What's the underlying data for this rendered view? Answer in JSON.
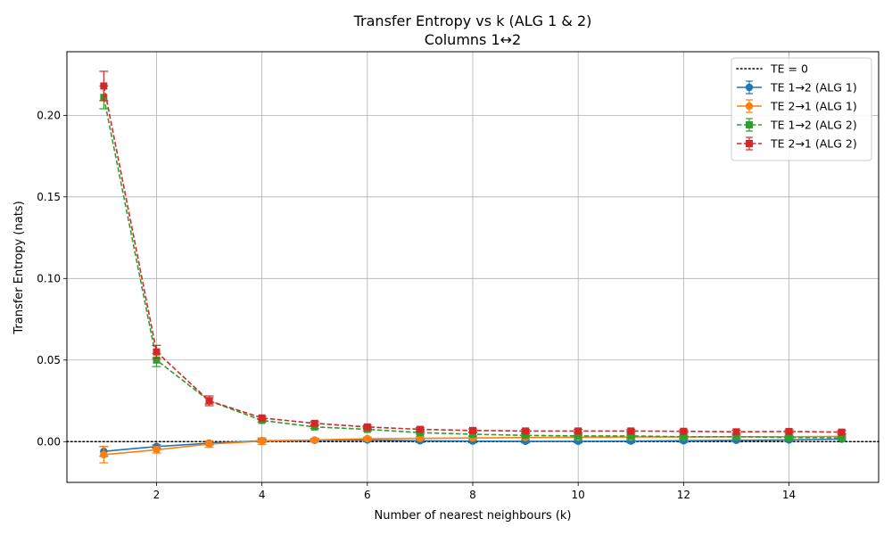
{
  "chart_data": {
    "type": "line",
    "title": "Transfer Entropy vs k (ALG 1 & 2)",
    "subtitle": "Columns 1↔2",
    "xlabel": "Number of nearest neighbours (k)",
    "ylabel": "Transfer Entropy (nats)",
    "xlim": [
      0.3,
      15.7
    ],
    "ylim": [
      -0.025,
      0.239
    ],
    "x_ticks": [
      2,
      4,
      6,
      8,
      10,
      12,
      14
    ],
    "y_ticks": [
      0.0,
      0.05,
      0.1,
      0.15,
      0.2
    ],
    "y_tick_labels": [
      "0.00",
      "0.05",
      "0.10",
      "0.15",
      "0.20"
    ],
    "grid": true,
    "legend_position": "top-right",
    "reference_line": {
      "name": "TE = 0",
      "y": 0,
      "color": "#000000",
      "style": "dotted"
    },
    "x": [
      1,
      2,
      3,
      4,
      5,
      6,
      7,
      8,
      9,
      10,
      11,
      12,
      13,
      14,
      15
    ],
    "series": [
      {
        "name": "TE 1→2 (ALG 1)",
        "color": "#1f77b4",
        "marker": "circle",
        "style": "solid",
        "values": [
          -0.006,
          -0.003,
          -0.001,
          0.0005,
          0.0008,
          0.001,
          0.0005,
          0.0003,
          0.0002,
          0.0002,
          0.0003,
          0.0005,
          0.0008,
          0.001,
          0.0015
        ],
        "errors": [
          0.003,
          0.001,
          0.001,
          0.001,
          0.001,
          0.001,
          0.001,
          0.001,
          0.001,
          0.001,
          0.001,
          0.001,
          0.001,
          0.001,
          0.001
        ]
      },
      {
        "name": "TE 2→1 (ALG 1)",
        "color": "#ff7f0e",
        "marker": "circle",
        "style": "solid",
        "values": [
          -0.008,
          -0.005,
          -0.0015,
          0.0003,
          0.001,
          0.0018,
          0.002,
          0.0022,
          0.0025,
          0.0027,
          0.0028,
          0.0028,
          0.003,
          0.003,
          0.0032
        ],
        "errors": [
          0.005,
          0.002,
          0.002,
          0.002,
          0.001,
          0.001,
          0.001,
          0.001,
          0.001,
          0.001,
          0.001,
          0.001,
          0.001,
          0.001,
          0.001
        ]
      },
      {
        "name": "TE 1→2 (ALG 2)",
        "color": "#2ca02c",
        "marker": "square",
        "style": "dashed",
        "values": [
          0.211,
          0.05,
          0.025,
          0.013,
          0.009,
          0.0075,
          0.0055,
          0.0045,
          0.0038,
          0.0035,
          0.0035,
          0.003,
          0.003,
          0.0025,
          0.0023
        ],
        "errors": [
          0.007,
          0.004,
          0.002,
          0.001,
          0.001,
          0.001,
          0.001,
          0.001,
          0.001,
          0.001,
          0.001,
          0.001,
          0.001,
          0.001,
          0.001
        ]
      },
      {
        "name": "TE 2→1 (ALG 2)",
        "color": "#d62728",
        "marker": "square",
        "style": "dashed",
        "values": [
          0.218,
          0.055,
          0.025,
          0.0145,
          0.0112,
          0.009,
          0.0075,
          0.0068,
          0.0065,
          0.0065,
          0.0065,
          0.0063,
          0.006,
          0.0062,
          0.0058
        ],
        "errors": [
          0.009,
          0.004,
          0.003,
          0.001,
          0.001,
          0.001,
          0.001,
          0.001,
          0.001,
          0.001,
          0.001,
          0.001,
          0.001,
          0.001,
          0.001
        ]
      }
    ]
  }
}
